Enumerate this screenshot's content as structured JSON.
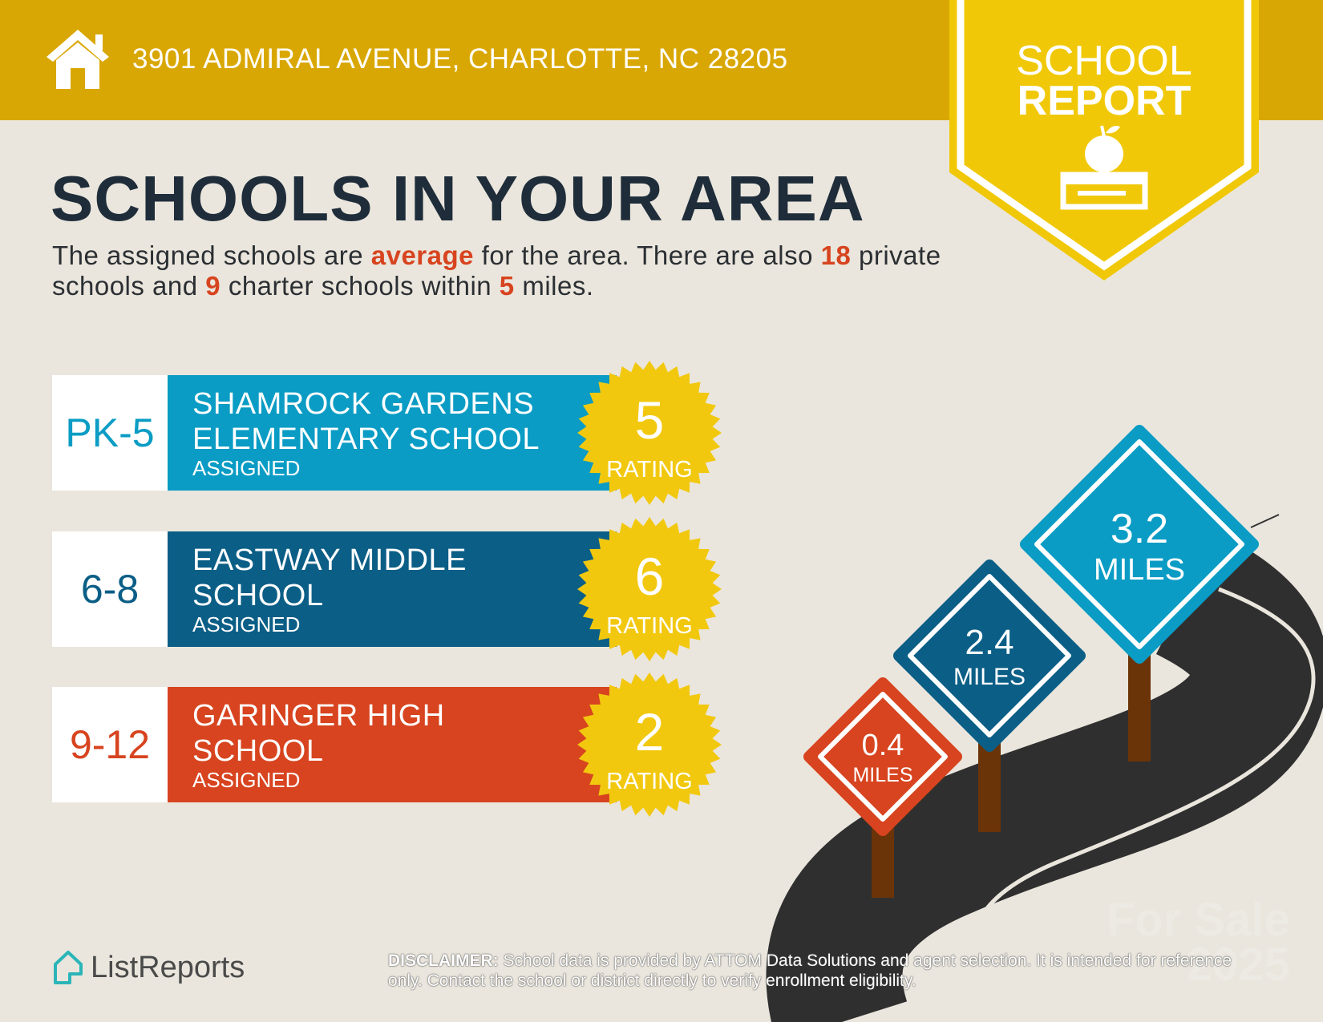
{
  "header": {
    "address": "3901 ADMIRAL AVENUE, CHARLOTTE, NC 28205",
    "icon": "house-icon"
  },
  "badge": {
    "line1": "SCHOOL",
    "line2": "REPORT",
    "icon": "apple-on-book-icon"
  },
  "title": "SCHOOLS IN YOUR AREA",
  "summary": {
    "p1": "The assigned schools are ",
    "quality": "average",
    "p2": " for the area. There are also ",
    "private_count": "18",
    "p3": " private schools and ",
    "charter_count": "9",
    "p4": " charter schools within ",
    "radius": "5",
    "p5": " miles."
  },
  "schools": [
    {
      "grades": "PK-5",
      "name1": "SHAMROCK GARDENS",
      "name2": "ELEMENTARY SCHOOL",
      "status": "ASSIGNED",
      "rating": "5",
      "rating_label": "RATING",
      "color": "#0A9CC4"
    },
    {
      "grades": "6-8",
      "name1": "EASTWAY MIDDLE",
      "name2": "SCHOOL",
      "status": "ASSIGNED",
      "rating": "6",
      "rating_label": "RATING",
      "color": "#0B5E86"
    },
    {
      "grades": "9-12",
      "name1": "GARINGER HIGH",
      "name2": "SCHOOL",
      "status": "ASSIGNED",
      "rating": "2",
      "rating_label": "RATING",
      "color": "#D7441F"
    }
  ],
  "distances": [
    {
      "value": "3.2",
      "unit": "MILES",
      "color": "#0A9CC4"
    },
    {
      "value": "2.4",
      "unit": "MILES",
      "color": "#0B5E86"
    },
    {
      "value": "0.4",
      "unit": "MILES",
      "color": "#D7441F"
    }
  ],
  "footer": {
    "logo": "ListReports",
    "disclaimer_label": "DISCLAIMER:",
    "disclaimer": " School data is provided by ATTOM Data Solutions and agent selection. It is intended for reference only. Contact the school or district directly to verify enrollment eligibility."
  },
  "watermark": {
    "line1": "For Sale",
    "line2": "2025"
  }
}
